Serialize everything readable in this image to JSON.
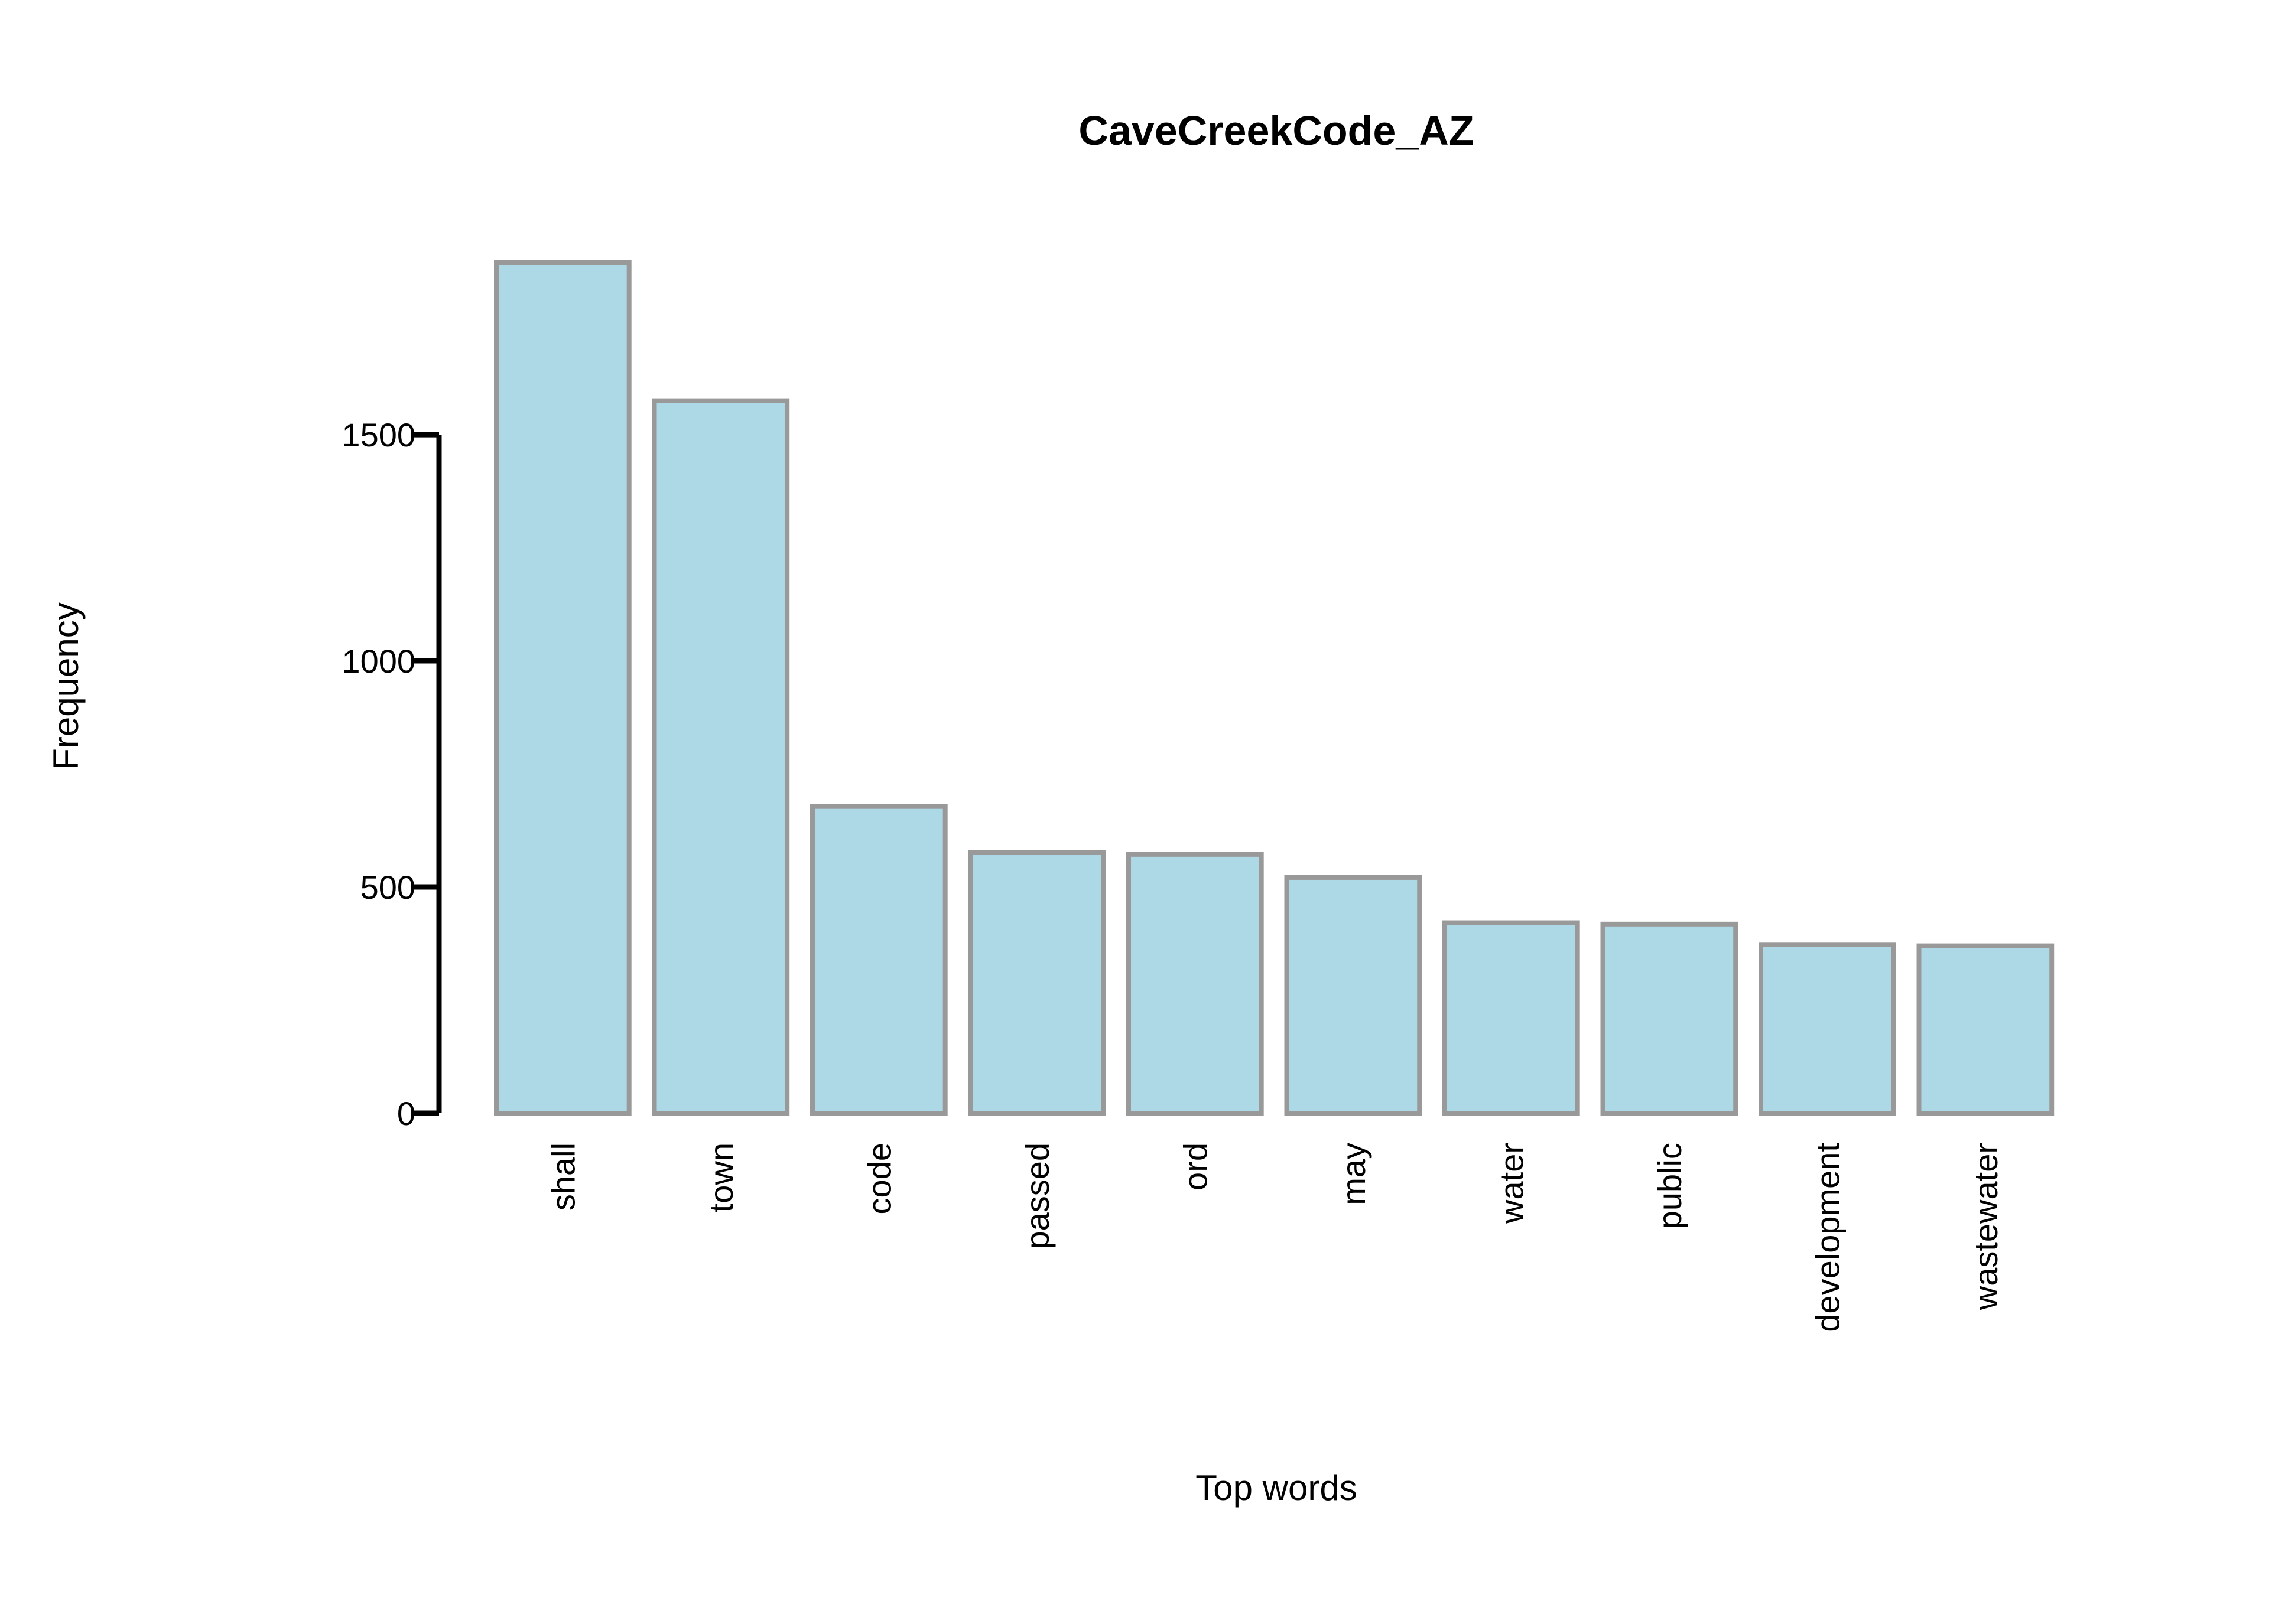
{
  "chart_data": {
    "type": "bar",
    "title": "CaveCreekCode_AZ",
    "xlabel": "Top words",
    "ylabel": "Frequency",
    "categories": [
      "shall",
      "town",
      "code",
      "passed",
      "ord",
      "may",
      "water",
      "public",
      "development",
      "wastewater"
    ],
    "values": [
      1880,
      1575,
      678,
      577,
      572,
      521,
      421,
      418,
      373,
      370
    ],
    "ylim": [
      0,
      1880
    ],
    "yticks": [
      "0",
      "500",
      "1000",
      "1500"
    ],
    "grid": false,
    "legend": "none",
    "colors": {
      "bar_fill": "#add8e6",
      "bar_stroke": "#999999",
      "axis": "#000000"
    }
  }
}
